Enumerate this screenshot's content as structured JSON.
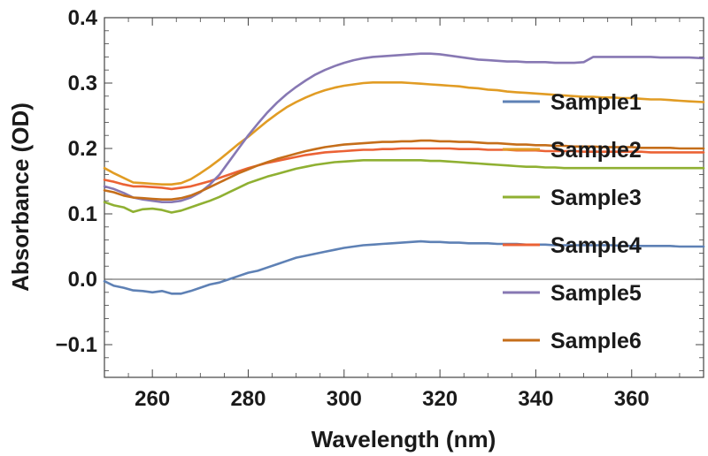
{
  "chart_data": {
    "type": "line",
    "title": "",
    "xlabel": "Wavelength (nm)",
    "ylabel": "Absorbance (OD)",
    "xlim": [
      250,
      375
    ],
    "ylim": [
      -0.15,
      0.4
    ],
    "xticks": [
      260,
      280,
      300,
      320,
      340,
      360
    ],
    "xtick_labels": [
      "260",
      "280",
      "300",
      "320",
      "340",
      "360"
    ],
    "yticks": [
      -0.1,
      0.0,
      0.1,
      0.2,
      0.3,
      0.4
    ],
    "ytick_labels": [
      "−0.1",
      "0.0",
      "0.1",
      "0.2",
      "0.3",
      "0.4"
    ],
    "grid": false,
    "zero_line": true,
    "legend_position": "right",
    "x": [
      250,
      252,
      254,
      256,
      258,
      260,
      262,
      264,
      266,
      268,
      270,
      272,
      274,
      276,
      278,
      280,
      282,
      284,
      286,
      288,
      290,
      292,
      294,
      296,
      298,
      300,
      302,
      304,
      306,
      308,
      310,
      312,
      314,
      316,
      318,
      320,
      322,
      324,
      326,
      328,
      330,
      332,
      334,
      336,
      338,
      340,
      342,
      344,
      346,
      348,
      350,
      352,
      354,
      356,
      358,
      360,
      362,
      364,
      366,
      368,
      370,
      372,
      375
    ],
    "series": [
      {
        "name": "Sample1",
        "color": "#5e81b5",
        "values": [
          -0.003,
          -0.01,
          -0.013,
          -0.017,
          -0.018,
          -0.02,
          -0.018,
          -0.022,
          -0.022,
          -0.018,
          -0.013,
          -0.008,
          -0.005,
          0.0,
          0.005,
          0.01,
          0.013,
          0.018,
          0.023,
          0.028,
          0.033,
          0.036,
          0.039,
          0.042,
          0.045,
          0.048,
          0.05,
          0.052,
          0.053,
          0.054,
          0.055,
          0.056,
          0.057,
          0.058,
          0.057,
          0.057,
          0.056,
          0.056,
          0.055,
          0.055,
          0.055,
          0.054,
          0.054,
          0.054,
          0.053,
          0.053,
          0.053,
          0.052,
          0.052,
          0.052,
          0.052,
          0.052,
          0.052,
          0.052,
          0.051,
          0.051,
          0.051,
          0.051,
          0.051,
          0.051,
          0.05,
          0.05,
          0.05
        ]
      },
      {
        "name": "Sample2",
        "color": "#e19c24",
        "values": [
          0.17,
          0.162,
          0.155,
          0.148,
          0.147,
          0.146,
          0.145,
          0.145,
          0.147,
          0.153,
          0.162,
          0.172,
          0.183,
          0.195,
          0.207,
          0.218,
          0.23,
          0.242,
          0.253,
          0.263,
          0.271,
          0.278,
          0.284,
          0.289,
          0.293,
          0.296,
          0.298,
          0.3,
          0.301,
          0.301,
          0.301,
          0.301,
          0.3,
          0.299,
          0.298,
          0.297,
          0.296,
          0.295,
          0.293,
          0.292,
          0.29,
          0.289,
          0.287,
          0.286,
          0.285,
          0.284,
          0.283,
          0.282,
          0.281,
          0.28,
          0.279,
          0.279,
          0.278,
          0.278,
          0.277,
          0.277,
          0.276,
          0.275,
          0.275,
          0.274,
          0.273,
          0.272,
          0.271
        ]
      },
      {
        "name": "Sample3",
        "color": "#8fb032",
        "values": [
          0.118,
          0.113,
          0.11,
          0.103,
          0.107,
          0.108,
          0.106,
          0.102,
          0.105,
          0.11,
          0.115,
          0.12,
          0.126,
          0.133,
          0.14,
          0.147,
          0.152,
          0.157,
          0.161,
          0.165,
          0.169,
          0.172,
          0.175,
          0.177,
          0.179,
          0.18,
          0.181,
          0.182,
          0.182,
          0.182,
          0.182,
          0.182,
          0.182,
          0.182,
          0.181,
          0.181,
          0.18,
          0.179,
          0.178,
          0.177,
          0.176,
          0.175,
          0.174,
          0.173,
          0.172,
          0.172,
          0.171,
          0.171,
          0.17,
          0.17,
          0.17,
          0.17,
          0.17,
          0.17,
          0.17,
          0.17,
          0.17,
          0.17,
          0.17,
          0.17,
          0.17,
          0.17,
          0.17
        ]
      },
      {
        "name": "Sample4",
        "color": "#eb6235",
        "values": [
          0.152,
          0.149,
          0.145,
          0.142,
          0.142,
          0.141,
          0.14,
          0.138,
          0.14,
          0.142,
          0.146,
          0.15,
          0.155,
          0.16,
          0.165,
          0.17,
          0.174,
          0.178,
          0.181,
          0.184,
          0.187,
          0.19,
          0.192,
          0.194,
          0.195,
          0.196,
          0.197,
          0.198,
          0.198,
          0.199,
          0.199,
          0.2,
          0.2,
          0.2,
          0.2,
          0.2,
          0.2,
          0.199,
          0.199,
          0.199,
          0.198,
          0.198,
          0.198,
          0.197,
          0.197,
          0.197,
          0.196,
          0.196,
          0.196,
          0.196,
          0.195,
          0.195,
          0.195,
          0.195,
          0.195,
          0.195,
          0.195,
          0.194,
          0.194,
          0.194,
          0.194,
          0.194,
          0.194
        ]
      },
      {
        "name": "Sample5",
        "color": "#8778b3",
        "values": [
          0.142,
          0.138,
          0.132,
          0.125,
          0.122,
          0.12,
          0.118,
          0.118,
          0.12,
          0.125,
          0.133,
          0.145,
          0.16,
          0.18,
          0.2,
          0.22,
          0.238,
          0.255,
          0.27,
          0.283,
          0.294,
          0.304,
          0.313,
          0.32,
          0.326,
          0.331,
          0.335,
          0.338,
          0.34,
          0.341,
          0.342,
          0.343,
          0.344,
          0.345,
          0.345,
          0.344,
          0.342,
          0.34,
          0.338,
          0.336,
          0.335,
          0.334,
          0.333,
          0.333,
          0.332,
          0.332,
          0.332,
          0.331,
          0.331,
          0.331,
          0.332,
          0.34,
          0.34,
          0.34,
          0.34,
          0.34,
          0.34,
          0.34,
          0.339,
          0.339,
          0.339,
          0.339,
          0.338
        ]
      },
      {
        "name": "Sample6",
        "color": "#c56e1a",
        "values": [
          0.136,
          0.133,
          0.128,
          0.125,
          0.124,
          0.123,
          0.122,
          0.122,
          0.124,
          0.128,
          0.134,
          0.141,
          0.148,
          0.155,
          0.162,
          0.168,
          0.174,
          0.179,
          0.184,
          0.188,
          0.192,
          0.196,
          0.199,
          0.202,
          0.204,
          0.206,
          0.207,
          0.208,
          0.209,
          0.21,
          0.21,
          0.211,
          0.211,
          0.212,
          0.212,
          0.211,
          0.211,
          0.21,
          0.21,
          0.209,
          0.208,
          0.208,
          0.207,
          0.206,
          0.206,
          0.205,
          0.205,
          0.204,
          0.204,
          0.203,
          0.203,
          0.203,
          0.202,
          0.202,
          0.202,
          0.202,
          0.201,
          0.201,
          0.201,
          0.201,
          0.2,
          0.2,
          0.2
        ]
      }
    ]
  }
}
